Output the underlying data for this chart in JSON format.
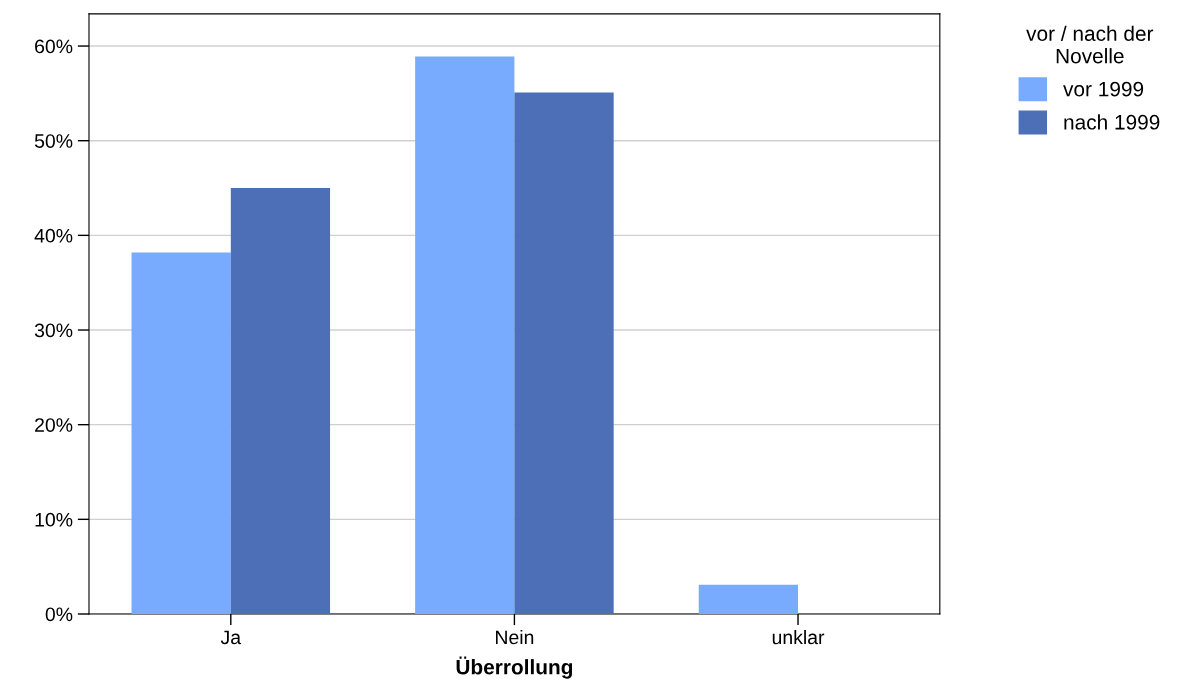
{
  "chart_data": {
    "type": "bar",
    "xlabel": "Überrollung",
    "legend_title": "vor / nach der\nNovelle",
    "categories": [
      "Ja",
      "Nein",
      "unklar"
    ],
    "series": [
      {
        "name": "vor 1999",
        "color": "#78aafe",
        "values": [
          38.2,
          58.9,
          3.1
        ]
      },
      {
        "name": "nach 1999",
        "color": "#4d6fb8",
        "values": [
          45.0,
          55.1,
          0
        ]
      }
    ],
    "ylim": [
      0,
      63.4
    ],
    "yticks": [
      {
        "value": 0,
        "label": "0%"
      },
      {
        "value": 10,
        "label": "10%"
      },
      {
        "value": 20,
        "label": "20%"
      },
      {
        "value": 30,
        "label": "30%"
      },
      {
        "value": 40,
        "label": "40%"
      },
      {
        "value": 50,
        "label": "50%"
      },
      {
        "value": 60,
        "label": "60%"
      }
    ],
    "grid": "y",
    "legend": "top right"
  }
}
